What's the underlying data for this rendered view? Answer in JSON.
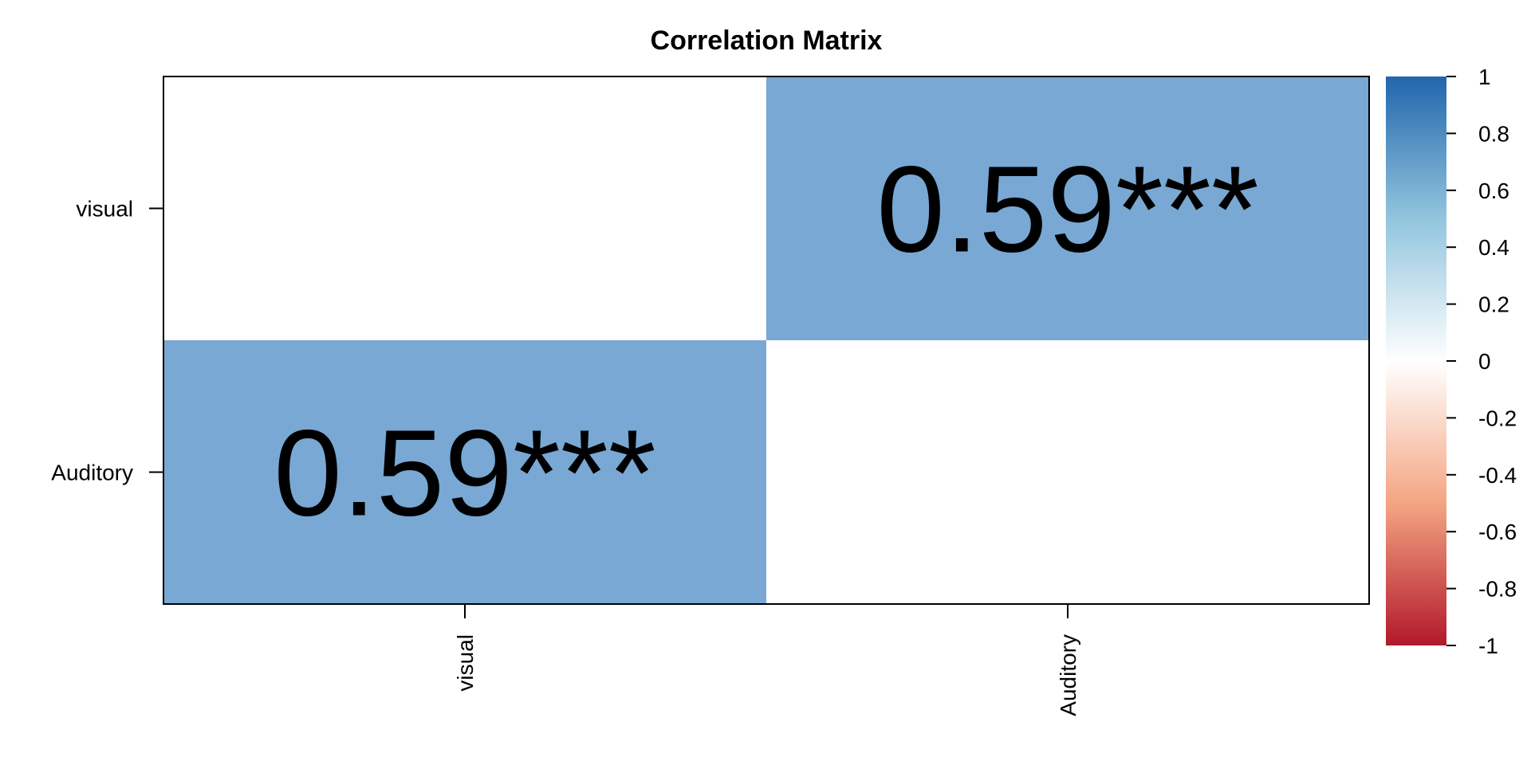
{
  "chart_data": {
    "type": "heatmap",
    "title": "Correlation Matrix",
    "row_labels": [
      "visual",
      "Auditory"
    ],
    "col_labels": [
      "visual",
      "Auditory"
    ],
    "cells": [
      [
        {
          "value": null,
          "label": ""
        },
        {
          "value": 0.59,
          "label": "0.59***"
        }
      ],
      [
        {
          "value": 0.59,
          "label": "0.59***"
        },
        {
          "value": null,
          "label": ""
        }
      ]
    ],
    "color_scale": {
      "min": -1,
      "max": 1,
      "ticks": [
        "1",
        "0.8",
        "0.6",
        "0.4",
        "0.2",
        "0",
        "-0.2",
        "-0.4",
        "-0.6",
        "-0.8",
        "-1"
      ],
      "low_color": "#b2182b",
      "mid_color": "#ffffff",
      "high_color": "#2166ac",
      "cell_color": "#78a8d3"
    },
    "grid": false,
    "legend_position": "right"
  }
}
